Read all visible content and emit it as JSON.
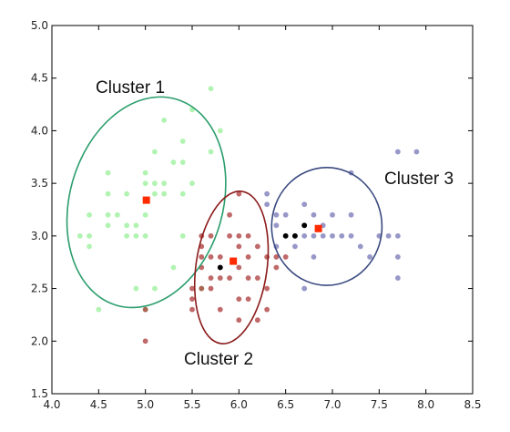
{
  "chart_data": {
    "type": "scatter",
    "xlim": [
      4.0,
      8.5
    ],
    "ylim": [
      1.5,
      5.0
    ],
    "grid": false,
    "xticks": [
      "4.0",
      "4.5",
      "5.0",
      "5.5",
      "6.0",
      "6.5",
      "7.0",
      "7.5",
      "8.0",
      "8.5"
    ],
    "yticks": [
      "1.5",
      "2.0",
      "2.5",
      "3.0",
      "3.5",
      "4.0",
      "4.5",
      "5.0"
    ],
    "series": [
      {
        "color": "#90ee90",
        "points": [
          [
            4.3,
            3.0
          ],
          [
            4.4,
            2.9
          ],
          [
            4.4,
            3.0
          ],
          [
            4.4,
            3.2
          ],
          [
            4.5,
            2.3
          ],
          [
            4.6,
            3.1
          ],
          [
            4.6,
            3.2
          ],
          [
            4.6,
            3.4
          ],
          [
            4.6,
            3.6
          ],
          [
            4.7,
            3.2
          ],
          [
            4.8,
            3.0
          ],
          [
            4.8,
            3.1
          ],
          [
            4.8,
            3.4
          ],
          [
            4.9,
            2.5
          ],
          [
            4.9,
            3.0
          ],
          [
            4.9,
            3.1
          ],
          [
            5.0,
            2.3
          ],
          [
            5.0,
            3.0
          ],
          [
            5.0,
            3.2
          ],
          [
            5.0,
            3.5
          ],
          [
            5.0,
            3.6
          ],
          [
            5.1,
            2.5
          ],
          [
            5.1,
            3.4
          ],
          [
            5.1,
            3.5
          ],
          [
            5.1,
            3.8
          ],
          [
            5.2,
            3.4
          ],
          [
            5.2,
            3.5
          ],
          [
            5.2,
            4.1
          ],
          [
            5.3,
            3.7
          ],
          [
            5.4,
            3.0
          ],
          [
            5.4,
            3.4
          ],
          [
            5.4,
            3.7
          ],
          [
            5.4,
            3.9
          ],
          [
            5.5,
            3.5
          ],
          [
            5.5,
            4.2
          ],
          [
            5.7,
            3.8
          ],
          [
            5.7,
            4.4
          ],
          [
            5.8,
            4.0
          ],
          [
            5.3,
            2.7
          ],
          [
            5.6,
            2.5
          ]
        ],
        "centroid": [
          5.01,
          3.34
        ]
      },
      {
        "color": "#a52a2a",
        "points": [
          [
            5.0,
            2.0
          ],
          [
            5.0,
            2.3
          ],
          [
            5.5,
            2.3
          ],
          [
            5.5,
            2.5
          ],
          [
            5.6,
            2.5
          ],
          [
            5.6,
            2.7
          ],
          [
            5.6,
            2.9
          ],
          [
            5.6,
            3.0
          ],
          [
            5.7,
            2.6
          ],
          [
            5.7,
            2.8
          ],
          [
            5.7,
            3.0
          ],
          [
            5.8,
            2.6
          ],
          [
            5.8,
            2.7
          ],
          [
            5.9,
            3.0
          ],
          [
            5.9,
            3.2
          ],
          [
            6.0,
            2.2
          ],
          [
            6.0,
            2.7
          ],
          [
            6.0,
            2.9
          ],
          [
            6.0,
            3.0
          ],
          [
            6.0,
            3.4
          ],
          [
            6.1,
            2.6
          ],
          [
            6.1,
            2.8
          ],
          [
            6.1,
            3.0
          ],
          [
            6.2,
            2.2
          ],
          [
            6.2,
            2.9
          ],
          [
            6.3,
            2.3
          ],
          [
            6.3,
            2.5
          ],
          [
            6.3,
            2.8
          ],
          [
            6.4,
            2.7
          ],
          [
            6.4,
            2.8
          ],
          [
            6.5,
            2.8
          ],
          [
            5.5,
            2.4
          ],
          [
            5.7,
            2.5
          ],
          [
            5.8,
            2.8
          ],
          [
            5.9,
            2.6
          ],
          [
            6.2,
            2.6
          ],
          [
            6.1,
            2.4
          ],
          [
            5.6,
            2.8
          ],
          [
            5.8,
            2.3
          ],
          [
            6.0,
            2.4
          ]
        ],
        "centroid": [
          5.94,
          2.76
        ]
      },
      {
        "color": "#6b6bb0",
        "points": [
          [
            6.4,
            3.1
          ],
          [
            6.4,
            3.2
          ],
          [
            6.5,
            3.0
          ],
          [
            6.6,
            3.0
          ],
          [
            6.7,
            2.5
          ],
          [
            6.7,
            3.0
          ],
          [
            6.7,
            3.1
          ],
          [
            6.7,
            3.3
          ],
          [
            6.8,
            3.0
          ],
          [
            6.8,
            3.2
          ],
          [
            6.9,
            3.1
          ],
          [
            7.0,
            3.2
          ],
          [
            7.1,
            3.0
          ],
          [
            7.2,
            3.0
          ],
          [
            7.2,
            3.2
          ],
          [
            7.2,
            3.6
          ],
          [
            7.3,
            2.9
          ],
          [
            7.4,
            2.8
          ],
          [
            7.6,
            3.0
          ],
          [
            7.7,
            2.6
          ],
          [
            7.7,
            2.8
          ],
          [
            7.7,
            3.0
          ],
          [
            7.7,
            3.8
          ],
          [
            7.9,
            3.8
          ],
          [
            6.9,
            3.0
          ],
          [
            6.3,
            3.3
          ],
          [
            6.5,
            3.2
          ],
          [
            6.6,
            2.9
          ],
          [
            6.8,
            2.8
          ],
          [
            7.0,
            3.0
          ],
          [
            6.3,
            3.4
          ],
          [
            6.4,
            2.9
          ],
          [
            7.5,
            3.0
          ]
        ],
        "centroid": [
          6.85,
          3.07
        ]
      }
    ],
    "dark_points": [
      [
        5.8,
        2.7
      ],
      [
        6.5,
        3.0
      ],
      [
        6.6,
        3.0
      ],
      [
        6.7,
        3.1
      ]
    ],
    "ellipses": [
      {
        "label": "Cluster 1",
        "color": "#2a9d6b",
        "cx": 5.01,
        "cy": 3.32,
        "rx": 0.82,
        "ry": 1.02,
        "rotate_deg": 16
      },
      {
        "label": "Cluster 2",
        "color": "#8b1a1a",
        "cx": 5.92,
        "cy": 2.7,
        "rx": 0.38,
        "ry": 0.73,
        "rotate_deg": 8
      },
      {
        "label": "Cluster 3",
        "color": "#3a4a80",
        "cx": 6.94,
        "cy": 3.09,
        "rx": 0.59,
        "ry": 0.56,
        "rotate_deg": 0
      }
    ],
    "annotations": [
      "Cluster 1",
      "Cluster 2",
      "Cluster 3"
    ],
    "centroid_color": "#ff2a00"
  }
}
